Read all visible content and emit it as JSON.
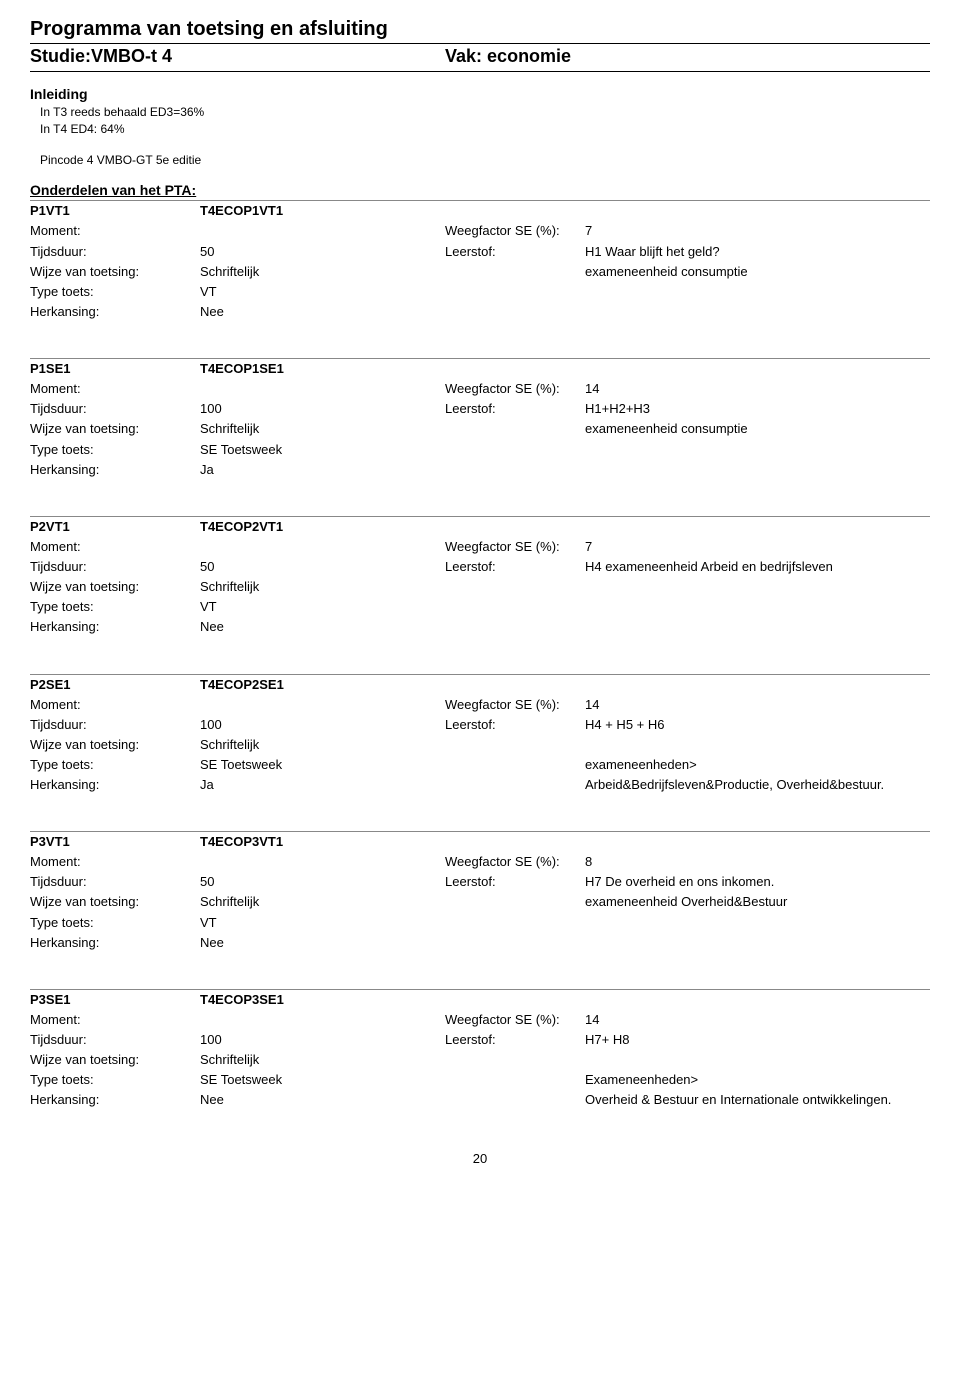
{
  "header": {
    "title": "Programma van toetsing en afsluiting",
    "studie_label": "Studie:",
    "studie_value": "VMBO-t 4",
    "vak_label": "Vak:",
    "vak_value": "economie"
  },
  "intro": {
    "heading": "Inleiding",
    "lines": [
      "In T3 reeds behaald ED3=36%",
      "In T4  ED4: 64%"
    ],
    "extra": "Pincode 4 VMBO-GT 5e editie"
  },
  "onderdelen_heading": "Onderdelen van het PTA:",
  "labels": {
    "moment": "Moment:",
    "tijdsduur": "Tijdsduur:",
    "wijze": "Wijze van toetsing:",
    "type": "Type toets:",
    "herkansing": "Herkansing:",
    "weegfactor": "Weegfactor SE (%):",
    "leerstof": "Leerstof:"
  },
  "items": [
    {
      "code1": "P1VT1",
      "code2": "T4ECOP1VT1",
      "moment": "",
      "tijdsduur": "50",
      "wijze": "Schriftelijk",
      "type": "VT",
      "herkansing": "Nee",
      "weegfactor": "7",
      "leerstof": "H1 Waar blijft het geld?",
      "leerstof_extra": [
        "exameneenheid consumptie"
      ]
    },
    {
      "code1": "P1SE1",
      "code2": "T4ECOP1SE1",
      "moment": "",
      "tijdsduur": "100",
      "wijze": "Schriftelijk",
      "type": "SE Toetsweek",
      "herkansing": "Ja",
      "weegfactor": "14",
      "leerstof": "H1+H2+H3",
      "leerstof_extra": [
        "exameneenheid consumptie"
      ]
    },
    {
      "code1": "P2VT1",
      "code2": "T4ECOP2VT1",
      "moment": "",
      "tijdsduur": "50",
      "wijze": "Schriftelijk",
      "type": "VT",
      "herkansing": "Nee",
      "weegfactor": "7",
      "leerstof": "H4 exameneenheid Arbeid en bedrijfsleven",
      "leerstof_extra": []
    },
    {
      "code1": "P2SE1",
      "code2": "T4ECOP2SE1",
      "moment": "",
      "tijdsduur": "100",
      "wijze": "Schriftelijk",
      "type": "SE Toetsweek",
      "herkansing": "Ja",
      "weegfactor": "14",
      "leerstof": "H4 + H5 + H6",
      "leerstof_extra": [
        "",
        "exameneenheden>",
        "Arbeid&Bedrijfsleven&Productie, Overheid&bestuur."
      ]
    },
    {
      "code1": "P3VT1",
      "code2": "T4ECOP3VT1",
      "moment": "",
      "tijdsduur": "50",
      "wijze": "Schriftelijk",
      "type": "VT",
      "herkansing": "Nee",
      "weegfactor": "8",
      "leerstof": "H7 De overheid en ons inkomen.",
      "leerstof_extra": [
        "exameneenheid Overheid&Bestuur"
      ]
    },
    {
      "code1": "P3SE1",
      "code2": "T4ECOP3SE1",
      "moment": "",
      "tijdsduur": "100",
      "wijze": "Schriftelijk",
      "type": "SE Toetsweek",
      "herkansing": "Nee",
      "weegfactor": "14",
      "leerstof": "H7+ H8",
      "leerstof_extra": [
        "",
        "Exameneenheden>",
        " Overheid & Bestuur en Internationale ontwikkelingen."
      ]
    }
  ],
  "page_number": "20"
}
